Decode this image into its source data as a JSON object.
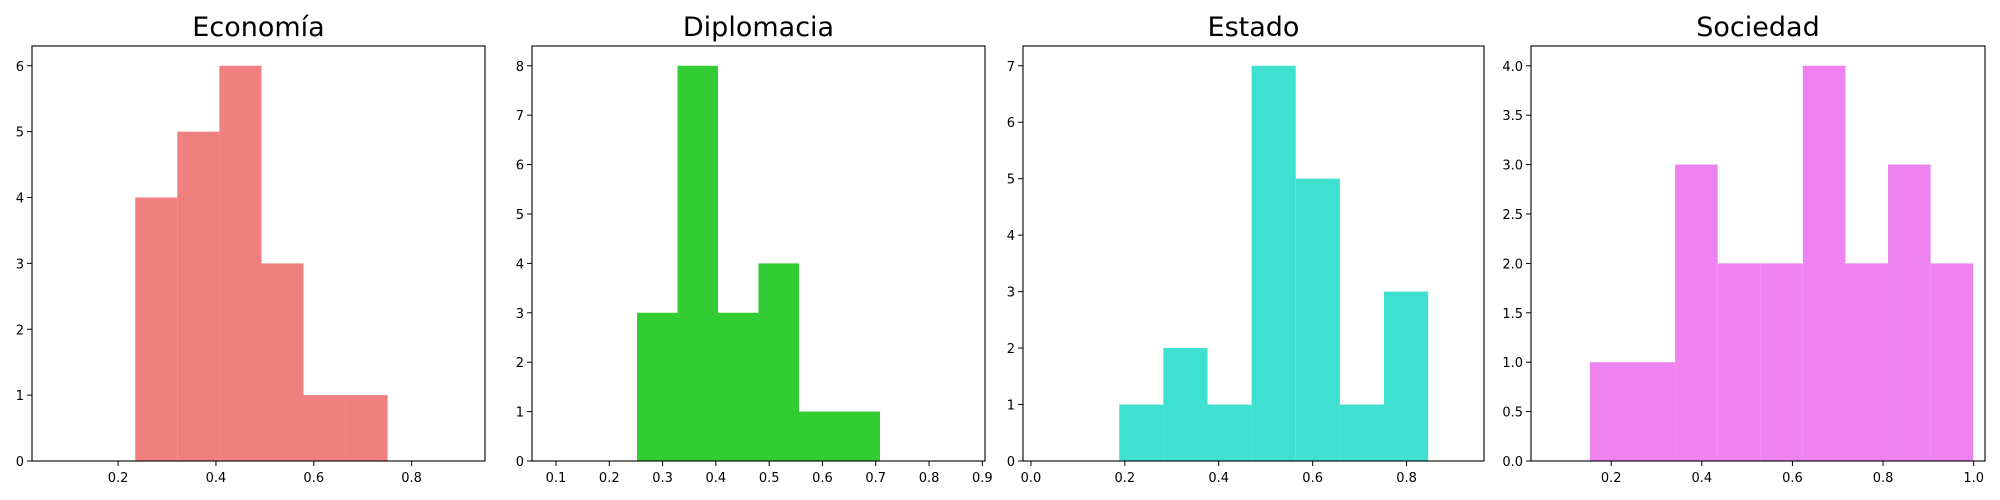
{
  "chart_data": [
    {
      "type": "bar",
      "title": "Economía",
      "color": "#F08080",
      "xlabel": "",
      "ylabel": "",
      "xlim": [
        0.024,
        0.95
      ],
      "ylim": [
        0,
        6.3
      ],
      "xticks": [
        0.2,
        0.4,
        0.6,
        0.8
      ],
      "xtick_labels": [
        "0.2",
        "0.4",
        "0.6",
        "0.8"
      ],
      "yticks": [
        0,
        1,
        2,
        3,
        4,
        5,
        6
      ],
      "ytick_labels": [
        "0",
        "1",
        "2",
        "3",
        "4",
        "5",
        "6"
      ],
      "bins": [
        {
          "x0": 0.235,
          "x1": 0.321,
          "value": 4
        },
        {
          "x0": 0.321,
          "x1": 0.407,
          "value": 5
        },
        {
          "x0": 0.407,
          "x1": 0.493,
          "value": 6
        },
        {
          "x0": 0.493,
          "x1": 0.579,
          "value": 3
        },
        {
          "x0": 0.579,
          "x1": 0.665,
          "value": 1
        },
        {
          "x0": 0.665,
          "x1": 0.751,
          "value": 1
        }
      ]
    },
    {
      "type": "bar",
      "title": "Diplomacia",
      "color": "#32CD32",
      "xlabel": "",
      "ylabel": "",
      "xlim": [
        0.055,
        0.905
      ],
      "ylim": [
        0,
        8.4
      ],
      "xticks": [
        0.1,
        0.2,
        0.3,
        0.4,
        0.5,
        0.6,
        0.7,
        0.8,
        0.9
      ],
      "xtick_labels": [
        "0.1",
        "0.2",
        "0.3",
        "0.4",
        "0.5",
        "0.6",
        "0.7",
        "0.8",
        "0.9"
      ],
      "yticks": [
        0,
        1,
        2,
        3,
        4,
        5,
        6,
        7,
        8
      ],
      "ytick_labels": [
        "0",
        "1",
        "2",
        "3",
        "4",
        "5",
        "6",
        "7",
        "8"
      ],
      "bins": [
        {
          "x0": 0.252,
          "x1": 0.328,
          "value": 3
        },
        {
          "x0": 0.328,
          "x1": 0.404,
          "value": 8
        },
        {
          "x0": 0.404,
          "x1": 0.48,
          "value": 3
        },
        {
          "x0": 0.48,
          "x1": 0.556,
          "value": 4
        },
        {
          "x0": 0.556,
          "x1": 0.632,
          "value": 1
        },
        {
          "x0": 0.632,
          "x1": 0.708,
          "value": 1
        }
      ]
    },
    {
      "type": "bar",
      "title": "Estado",
      "color": "#40E0D0",
      "xlabel": "",
      "ylabel": "",
      "xlim": [
        -0.017,
        0.965
      ],
      "ylim": [
        0,
        7.35
      ],
      "xticks": [
        0.0,
        0.2,
        0.4,
        0.6,
        0.8
      ],
      "xtick_labels": [
        "0.0",
        "0.2",
        "0.4",
        "0.6",
        "0.8"
      ],
      "yticks": [
        0,
        1,
        2,
        3,
        4,
        5,
        6,
        7
      ],
      "ytick_labels": [
        "0",
        "1",
        "2",
        "3",
        "4",
        "5",
        "6",
        "7"
      ],
      "bins": [
        {
          "x0": 0.188,
          "x1": 0.282,
          "value": 1
        },
        {
          "x0": 0.282,
          "x1": 0.376,
          "value": 2
        },
        {
          "x0": 0.376,
          "x1": 0.47,
          "value": 1
        },
        {
          "x0": 0.47,
          "x1": 0.564,
          "value": 7
        },
        {
          "x0": 0.564,
          "x1": 0.658,
          "value": 5
        },
        {
          "x0": 0.658,
          "x1": 0.752,
          "value": 1
        },
        {
          "x0": 0.752,
          "x1": 0.846,
          "value": 3
        }
      ]
    },
    {
      "type": "bar",
      "title": "Sociedad",
      "color": "#EE82EE",
      "xlabel": "",
      "ylabel": "",
      "xlim": [
        0.023,
        1.025
      ],
      "ylim": [
        0,
        4.2
      ],
      "xticks": [
        0.2,
        0.4,
        0.6,
        0.8,
        1.0
      ],
      "xtick_labels": [
        "0.2",
        "0.4",
        "0.6",
        "0.8",
        "1.0"
      ],
      "yticks": [
        0.0,
        0.5,
        1.0,
        1.5,
        2.0,
        2.5,
        3.0,
        3.5,
        4.0
      ],
      "ytick_labels": [
        "0.0",
        "0.5",
        "1.0",
        "1.5",
        "2.0",
        "2.5",
        "3.0",
        "3.5",
        "4.0"
      ],
      "bins": [
        {
          "x0": 0.153,
          "x1": 0.247,
          "value": 1
        },
        {
          "x0": 0.247,
          "x1": 0.341,
          "value": 1
        },
        {
          "x0": 0.341,
          "x1": 0.435,
          "value": 3
        },
        {
          "x0": 0.435,
          "x1": 0.529,
          "value": 2
        },
        {
          "x0": 0.529,
          "x1": 0.623,
          "value": 2
        },
        {
          "x0": 0.623,
          "x1": 0.717,
          "value": 4
        },
        {
          "x0": 0.717,
          "x1": 0.811,
          "value": 2
        },
        {
          "x0": 0.811,
          "x1": 0.905,
          "value": 3
        },
        {
          "x0": 0.905,
          "x1": 0.999,
          "value": 2
        }
      ]
    }
  ]
}
